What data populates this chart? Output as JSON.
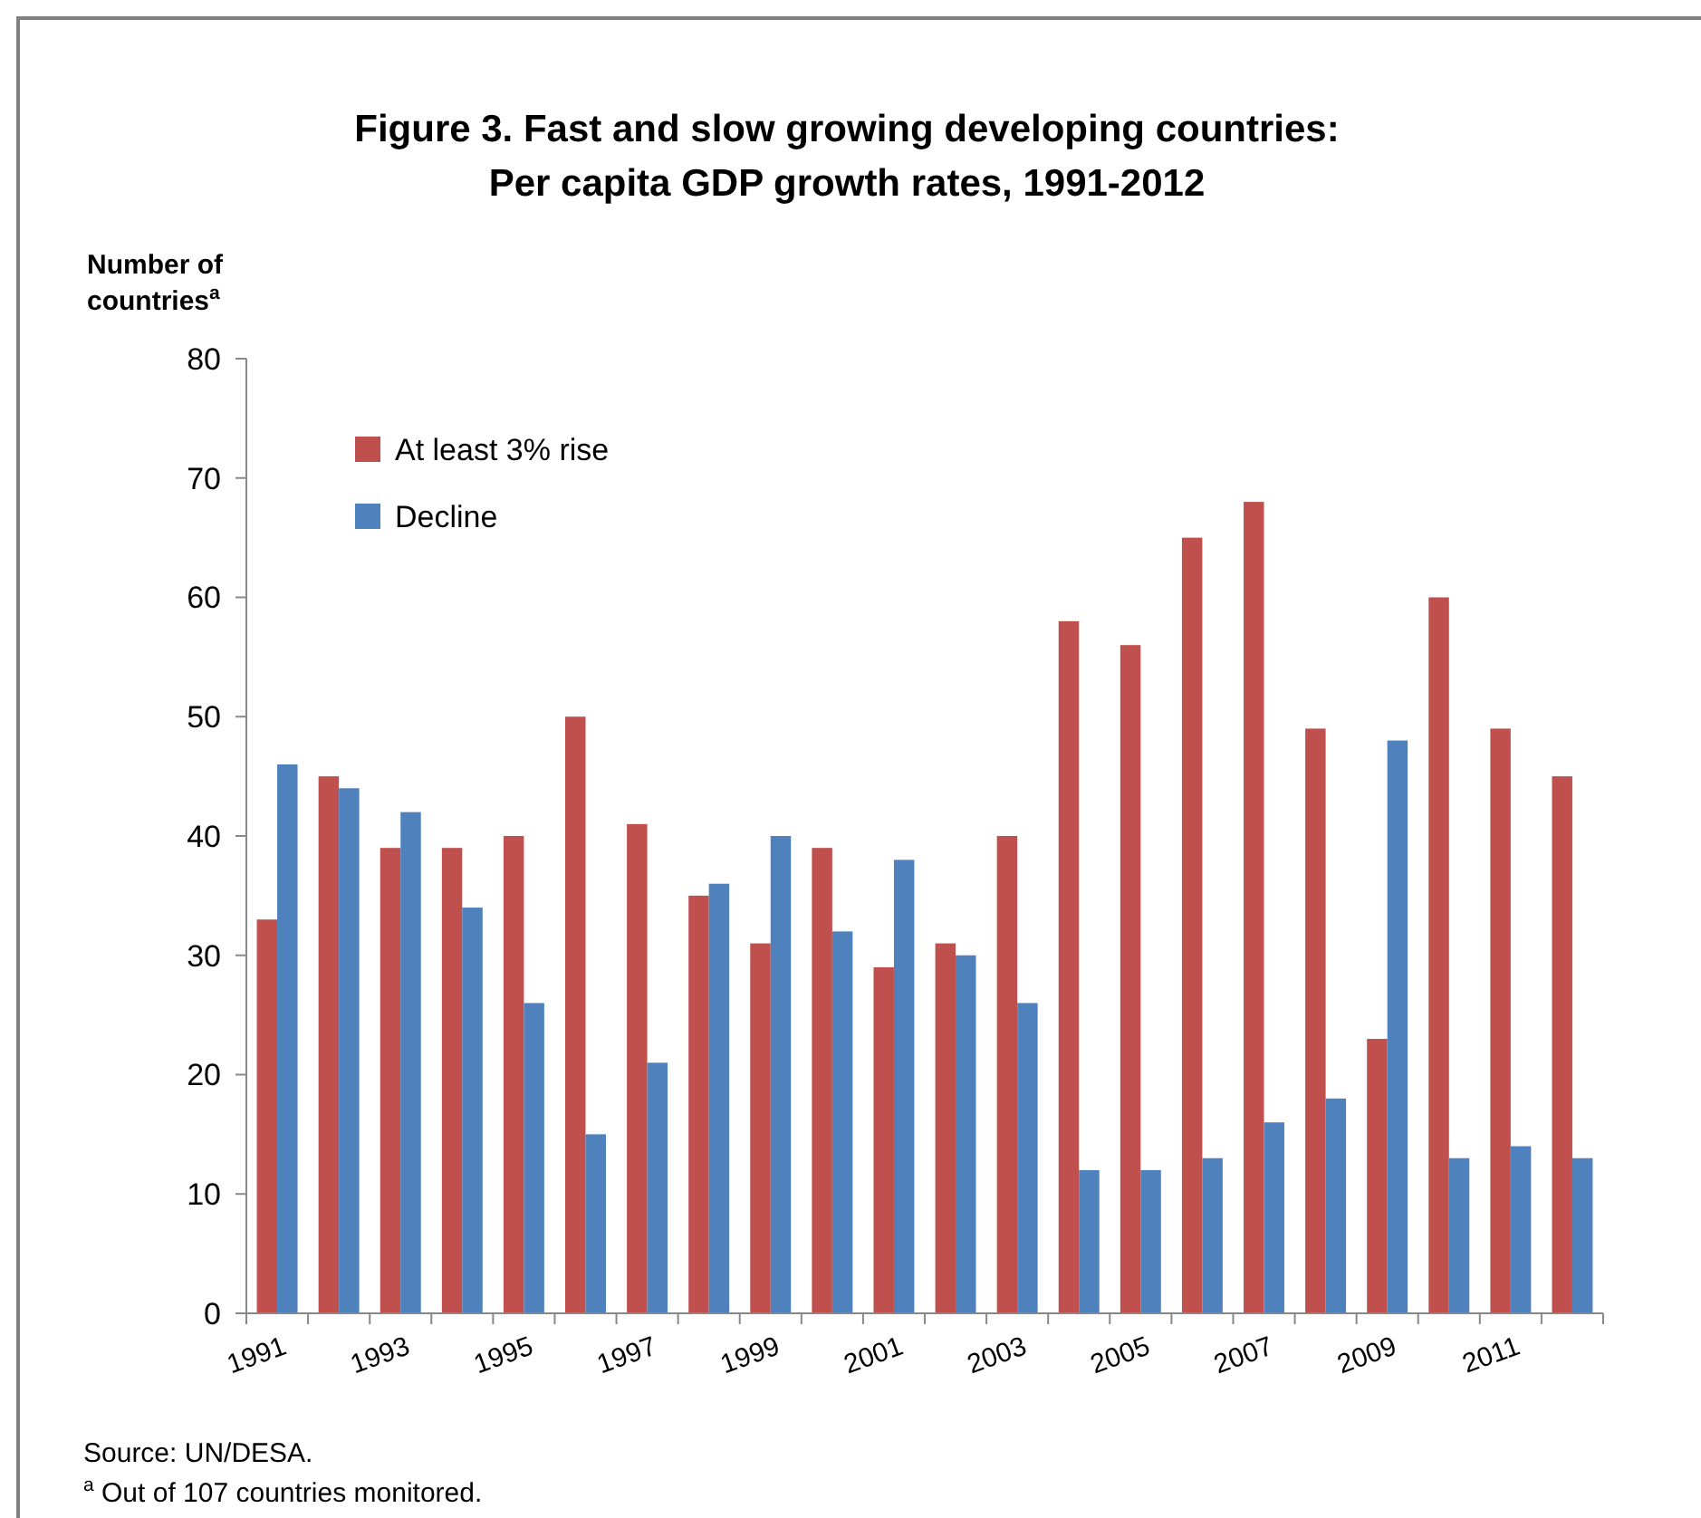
{
  "chart_data": {
    "type": "bar",
    "title": "Figure 3. Fast and slow growing developing countries:\nPer capita GDP growth rates, 1991-2012",
    "ylabel": "Number of\ncountries$^{a}$",
    "categories": [
      "1991",
      null,
      "1993",
      null,
      "1995",
      null,
      "1997",
      null,
      "1999",
      null,
      "2001",
      null,
      "2003",
      null,
      "2005",
      null,
      "2007",
      null,
      "2009",
      null,
      "2011",
      null
    ],
    "series": [
      {
        "name": "At least 3% rise",
        "color": "#c0504d",
        "values": [
          33,
          45,
          39,
          39,
          40,
          50,
          41,
          35,
          31,
          39,
          29,
          31,
          40,
          58,
          56,
          65,
          68,
          49,
          23,
          60,
          49,
          45
        ]
      },
      {
        "name": "Decline",
        "color": "#4f81bd",
        "values": [
          46,
          44,
          42,
          34,
          26,
          15,
          21,
          36,
          40,
          32,
          38,
          30,
          26,
          12,
          12,
          13,
          16,
          18,
          48,
          13,
          14,
          13
        ]
      }
    ],
    "ylim": [
      0,
      80
    ],
    "yticks": [
      0,
      10,
      20,
      30,
      40,
      50,
      60,
      70,
      80
    ],
    "grid": false,
    "legend": "top left",
    "annotations": [
      "Source: UN/DESA.",
      "$^{a}$ Out of  107 countries monitored."
    ]
  }
}
